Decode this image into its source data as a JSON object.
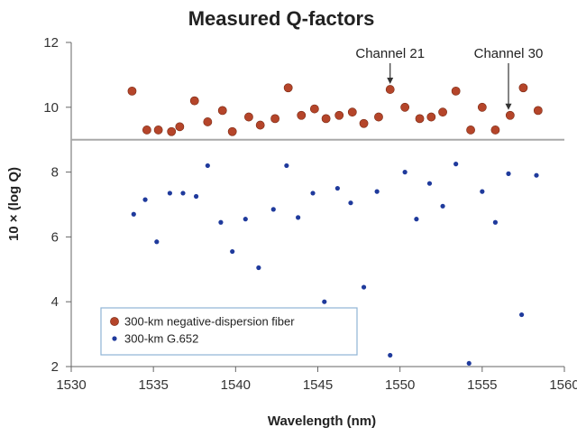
{
  "chart_data": {
    "type": "scatter",
    "title": "Measured Q-factors",
    "xlabel": "Wavelength (nm)",
    "ylabel": "10 × (log Q)",
    "xlim": [
      1530,
      1560
    ],
    "ylim": [
      2,
      12
    ],
    "xticks": [
      "1530",
      "1535",
      "1540",
      "1545",
      "1550",
      "1555",
      "1560"
    ],
    "yticks": [
      "2",
      "4",
      "6",
      "8",
      "10",
      "12"
    ],
    "threshold_y": 9.0,
    "grid": false,
    "legend_position": "bottom-left",
    "series": [
      {
        "name": "300-km negative-dispersion fiber",
        "color": "#b5452a",
        "x": [
          1533.7,
          1534.6,
          1535.3,
          1536.1,
          1536.6,
          1537.5,
          1538.3,
          1539.2,
          1539.8,
          1540.8,
          1541.5,
          1542.4,
          1543.2,
          1544.0,
          1544.8,
          1545.5,
          1546.3,
          1547.1,
          1547.8,
          1548.7,
          1549.4,
          1550.3,
          1551.2,
          1551.9,
          1552.6,
          1553.4,
          1554.3,
          1555.0,
          1555.8,
          1556.7,
          1557.5,
          1558.4
        ],
        "y": [
          10.5,
          9.3,
          9.3,
          9.25,
          9.4,
          10.2,
          9.55,
          9.9,
          9.25,
          9.7,
          9.45,
          9.65,
          10.6,
          9.75,
          9.95,
          9.65,
          9.75,
          9.85,
          9.5,
          9.7,
          10.55,
          10.0,
          9.65,
          9.7,
          9.85,
          10.5,
          9.3,
          10.0,
          9.3,
          9.75,
          10.6,
          9.9
        ]
      },
      {
        "name": "300-km G.652",
        "color": "#1f3a9c",
        "x": [
          1533.8,
          1534.5,
          1535.2,
          1536.0,
          1536.8,
          1537.6,
          1538.3,
          1539.1,
          1539.8,
          1540.6,
          1541.4,
          1542.3,
          1543.1,
          1543.8,
          1544.7,
          1545.4,
          1546.2,
          1547.0,
          1547.8,
          1548.6,
          1549.4,
          1550.3,
          1551.0,
          1551.8,
          1552.6,
          1553.4,
          1554.2,
          1555.0,
          1555.8,
          1556.6,
          1557.4,
          1558.3
        ],
        "y": [
          6.7,
          7.15,
          5.85,
          7.35,
          7.35,
          7.25,
          8.2,
          6.45,
          5.55,
          6.55,
          5.05,
          6.85,
          8.2,
          6.6,
          7.35,
          4.0,
          7.5,
          7.05,
          4.45,
          7.4,
          2.35,
          8.0,
          6.55,
          7.65,
          6.95,
          8.25,
          2.1,
          7.4,
          6.45,
          7.95,
          3.6,
          7.9
        ]
      }
    ],
    "annotations": [
      {
        "text": "Channel 21",
        "x": 1549.4,
        "y": 10.55
      },
      {
        "text": "Channel 30",
        "x": 1556.6,
        "y": 9.75
      }
    ]
  }
}
